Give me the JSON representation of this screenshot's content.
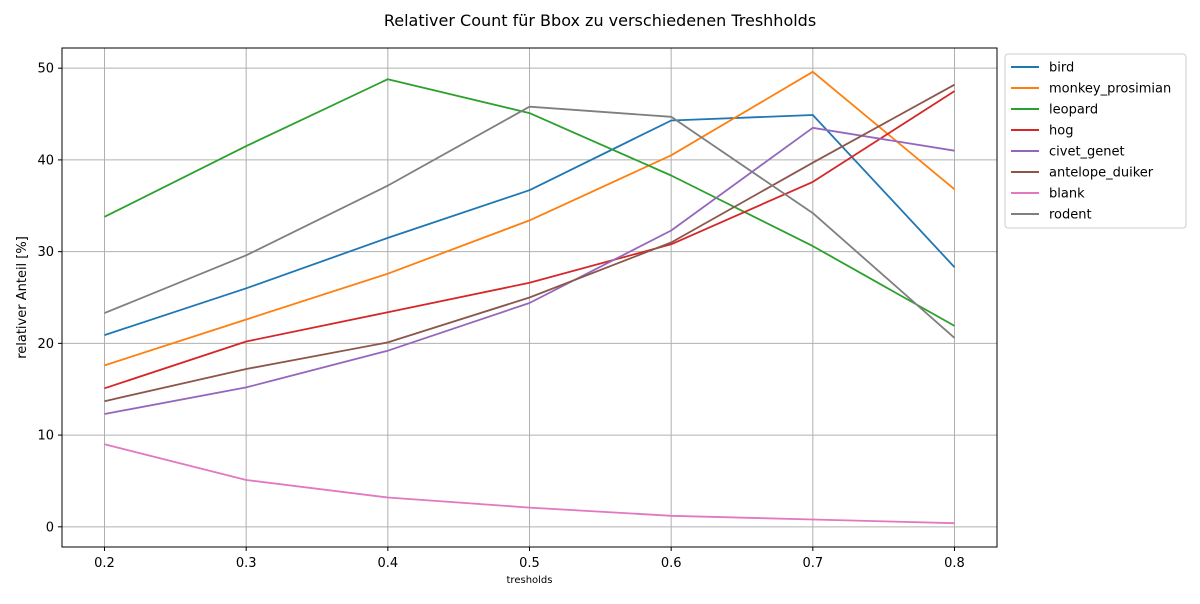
{
  "chart_data": {
    "type": "line",
    "title": "Relativer Count für Bbox zu verschiedenen Treshholds",
    "xlabel": "tresholds",
    "ylabel": "relativer Anteil [%]",
    "x": [
      0.2,
      0.3,
      0.4,
      0.5,
      0.6,
      0.7,
      0.8
    ],
    "x_ticks": [
      "0.2",
      "0.3",
      "0.4",
      "0.5",
      "0.6",
      "0.7",
      "0.8"
    ],
    "y_ticks": [
      "0",
      "10",
      "20",
      "30",
      "40",
      "50"
    ],
    "xlim": [
      0.17,
      0.83
    ],
    "ylim": [
      -2.2,
      52.2
    ],
    "grid": true,
    "legend_position": "outside-top-right",
    "series": [
      {
        "name": "bird",
        "color": "#1f77b4",
        "values": [
          20.9,
          26.0,
          31.5,
          36.7,
          44.3,
          44.9,
          28.3
        ]
      },
      {
        "name": "monkey_prosimian",
        "color": "#ff7f0e",
        "values": [
          17.6,
          22.6,
          27.6,
          33.4,
          40.5,
          49.6,
          36.8
        ]
      },
      {
        "name": "leopard",
        "color": "#2ca02c",
        "values": [
          33.8,
          41.5,
          48.8,
          45.1,
          38.3,
          30.6,
          21.9
        ]
      },
      {
        "name": "hog",
        "color": "#d62728",
        "values": [
          15.1,
          20.2,
          23.4,
          26.6,
          30.8,
          37.6,
          47.5
        ]
      },
      {
        "name": "civet_genet",
        "color": "#9467bd",
        "values": [
          12.3,
          15.2,
          19.2,
          24.4,
          32.3,
          43.5,
          41.0
        ]
      },
      {
        "name": "antelope_duiker",
        "color": "#8c564b",
        "values": [
          13.7,
          17.2,
          20.1,
          25.0,
          31.0,
          39.7,
          48.2
        ]
      },
      {
        "name": "blank",
        "color": "#e377c2",
        "values": [
          9.0,
          5.1,
          3.2,
          2.1,
          1.2,
          0.8,
          0.4
        ]
      },
      {
        "name": "rodent",
        "color": "#7f7f7f",
        "values": [
          23.3,
          29.6,
          37.2,
          45.8,
          44.7,
          34.2,
          20.6
        ]
      }
    ]
  }
}
